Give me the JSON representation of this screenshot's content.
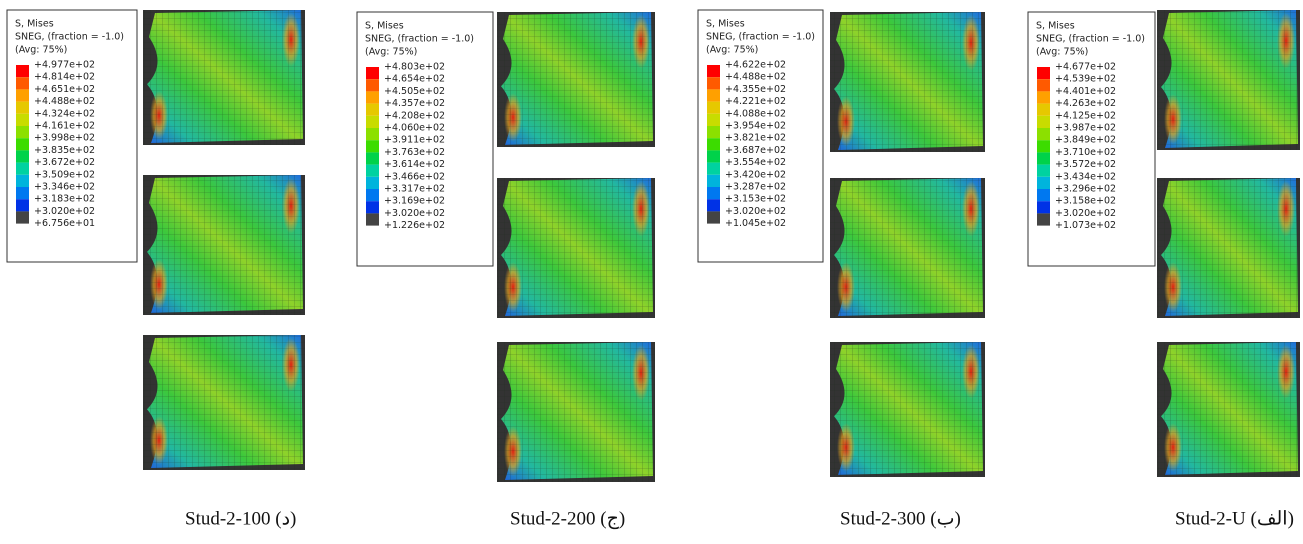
{
  "panels": [
    {
      "legend": {
        "title": "S, Mises",
        "line2": "SNEG, (fraction = -1.0)",
        "line3": "(Avg: 75%)",
        "values": [
          "+4.977e+02",
          "+4.814e+02",
          "+4.651e+02",
          "+4.488e+02",
          "+4.324e+02",
          "+4.161e+02",
          "+3.998e+02",
          "+3.835e+02",
          "+3.672e+02",
          "+3.509e+02",
          "+3.346e+02",
          "+3.183e+02",
          "+3.020e+02",
          "+6.756e+01"
        ]
      },
      "caption": "Stud-2-100 (د)"
    },
    {
      "legend": {
        "title": "S, Mises",
        "line2": "SNEG, (fraction = -1.0)",
        "line3": "(Avg: 75%)",
        "values": [
          "+4.803e+02",
          "+4.654e+02",
          "+4.505e+02",
          "+4.357e+02",
          "+4.208e+02",
          "+4.060e+02",
          "+3.911e+02",
          "+3.763e+02",
          "+3.614e+02",
          "+3.466e+02",
          "+3.317e+02",
          "+3.169e+02",
          "+3.020e+02",
          "+1.226e+02"
        ]
      },
      "caption": "Stud-2-200 (ج)"
    },
    {
      "legend": {
        "title": "S, Mises",
        "line2": "SNEG, (fraction = -1.0)",
        "line3": "(Avg: 75%)",
        "values": [
          "+4.622e+02",
          "+4.488e+02",
          "+4.355e+02",
          "+4.221e+02",
          "+4.088e+02",
          "+3.954e+02",
          "+3.821e+02",
          "+3.687e+02",
          "+3.554e+02",
          "+3.420e+02",
          "+3.287e+02",
          "+3.153e+02",
          "+3.020e+02",
          "+1.045e+02"
        ]
      },
      "caption": "Stud-2-300 (ب)"
    },
    {
      "legend": {
        "title": "S, Mises",
        "line2": "SNEG, (fraction = -1.0)",
        "line3": "(Avg: 75%)",
        "values": [
          "+4.677e+02",
          "+4.539e+02",
          "+4.401e+02",
          "+4.263e+02",
          "+4.125e+02",
          "+3.987e+02",
          "+3.849e+02",
          "+3.710e+02",
          "+3.572e+02",
          "+3.434e+02",
          "+3.296e+02",
          "+3.158e+02",
          "+3.020e+02",
          "+1.073e+02"
        ]
      },
      "caption": "Stud-2-U (الف)"
    }
  ]
}
